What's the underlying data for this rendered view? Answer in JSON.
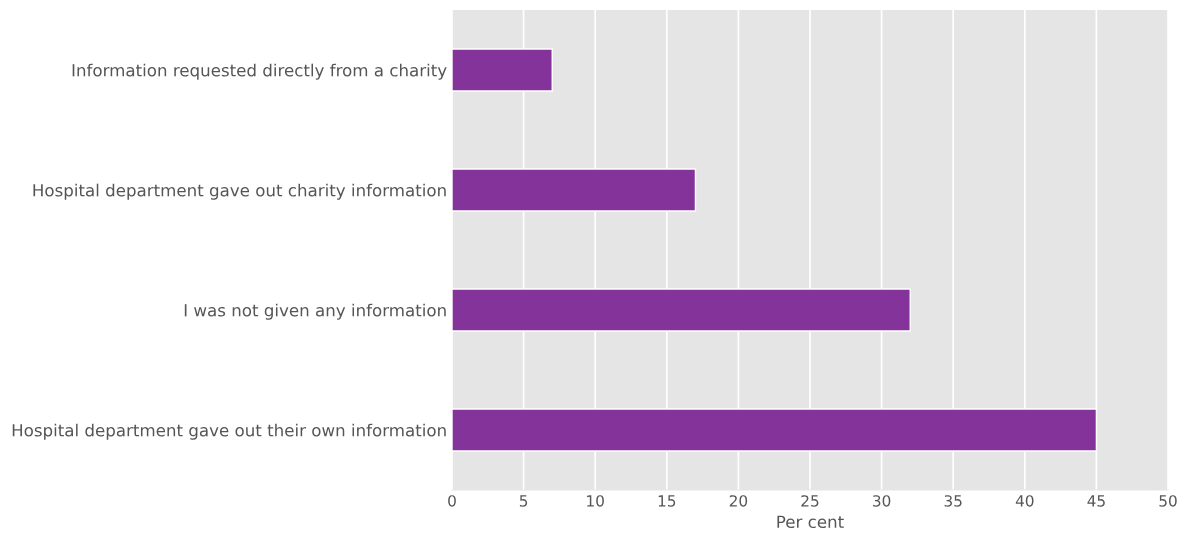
{
  "chart_data": {
    "type": "bar",
    "orientation": "horizontal",
    "categories": [
      "Information requested directly from a charity",
      "Hospital department gave out charity information",
      "I was not given any information",
      "Hospital department gave out their own information"
    ],
    "values": [
      7,
      17,
      32,
      45
    ],
    "color": "#84339a",
    "xlabel": "Per cent",
    "xlim": [
      0,
      50
    ],
    "xticks": [
      0,
      5,
      10,
      15,
      20,
      25,
      30,
      35,
      40,
      45,
      50
    ],
    "grid": "x"
  }
}
